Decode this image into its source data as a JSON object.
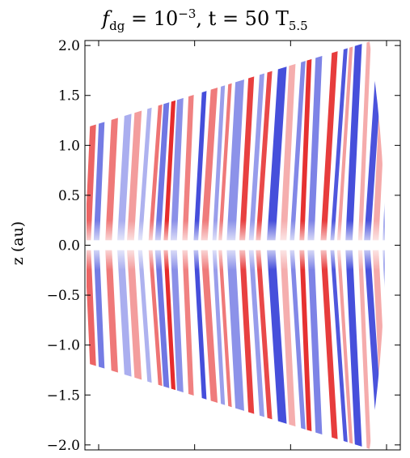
{
  "chart_data": {
    "type": "heatmap",
    "title": {
      "f_symbol": "f",
      "f_sub": "dg",
      "f_eq": " = 10",
      "f_exp": "−3",
      "t_part": ", t = 50 T",
      "t_sub": "5.5"
    },
    "ylabel": "z (au)",
    "xlabel": "",
    "ylim": [
      -2.05,
      2.05
    ],
    "yticks": [
      "2.0",
      "1.5",
      "1.0",
      "0.5",
      "0.0",
      "−0.5",
      "−1.0",
      "−1.5",
      "−2.0"
    ],
    "ytick_values": [
      2.0,
      1.5,
      1.0,
      0.5,
      0.0,
      -0.5,
      -1.0,
      -1.5,
      -2.0
    ],
    "xticks_shown": 4,
    "colormap": [
      "#2b35d6",
      "#ffffff",
      "#e41f1f"
    ],
    "wedge": {
      "inner_z_top": 1.18,
      "inner_z_bottom": -1.18,
      "outer_z_top": 2.04,
      "outer_z_bottom": -2.04
    }
  }
}
